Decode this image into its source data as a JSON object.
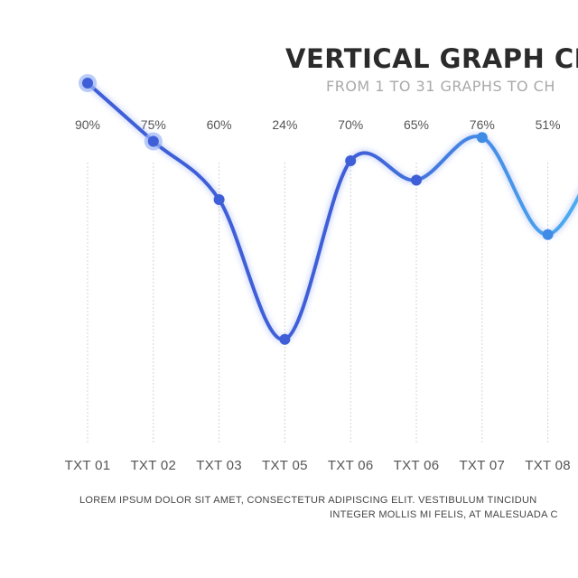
{
  "header": {
    "title": "VERTICAL GRAPH CH",
    "subtitle": "FROM 1 TO 31 GRAPHS TO CH"
  },
  "footer": {
    "line1": "LOREM IPSUM DOLOR SIT AMET, CONSECTETUR ADIPISCING ELIT. VESTIBULUM TINCIDUN",
    "line2": "INTEGER MOLLIS MI FELIS, AT MALESUADA C"
  },
  "colors": {
    "line_start": "#3f5fd8",
    "line_end": "#4aaef0",
    "gridline": "#d4d4d4",
    "marker_halo": "#9db6f3"
  },
  "chart_data": {
    "type": "line",
    "title": "VERTICAL GRAPH CH",
    "subtitle": "FROM 1 TO 31 GRAPHS TO CH",
    "categories": [
      "TXT 01",
      "TXT 02",
      "TXT 03",
      "TXT 05",
      "TXT 06",
      "TXT 06",
      "TXT 07",
      "TXT 08",
      ""
    ],
    "value_labels": [
      "90%",
      "75%",
      "60%",
      "24%",
      "70%",
      "65%",
      "76%",
      "51%",
      ""
    ],
    "values": [
      90,
      75,
      60,
      24,
      70,
      65,
      76,
      51,
      80
    ],
    "ylim": [
      0,
      100
    ],
    "grid": "vertical dotted",
    "legend": "none"
  }
}
